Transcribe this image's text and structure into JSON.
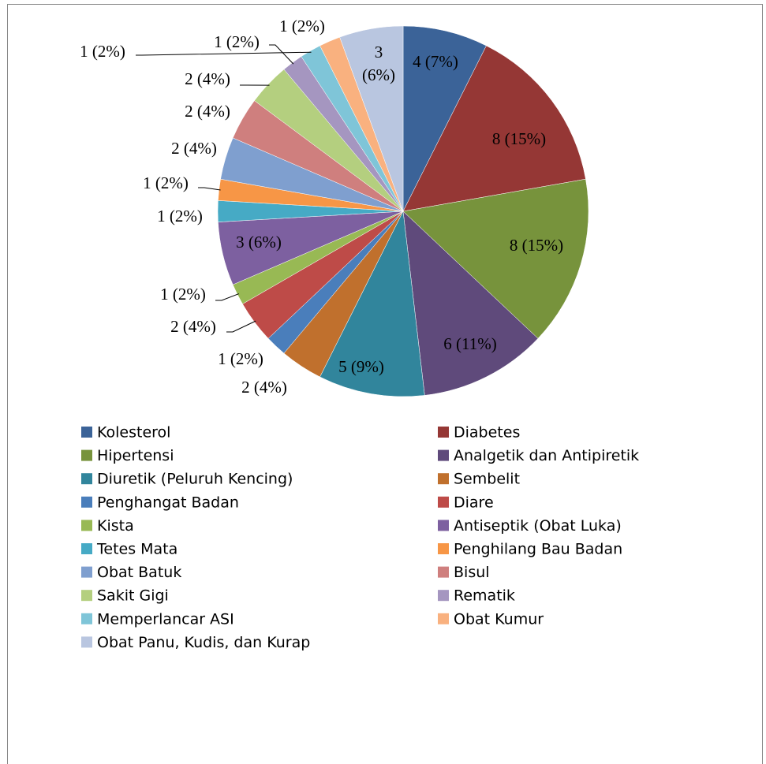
{
  "chart_data": {
    "type": "pie",
    "categories": [
      "Kolesterol",
      "Diabetes",
      "Hipertensi",
      "Analgetik dan Antipiretik",
      "Diuretik (Peluruh Kencing)",
      "Sembelit",
      "Penghangat Badan",
      "Diare",
      "Kista",
      "Antiseptik (Obat Luka)",
      "Tetes Mata",
      "Penghilang Bau Badan",
      "Obat Batuk",
      "Bisul",
      "Sakit Gigi",
      "Rematik",
      "Memperlancar ASI",
      "Obat Kumur",
      "Obat Panu, Kudis, dan Kurap"
    ],
    "values": [
      4,
      8,
      8,
      6,
      5,
      2,
      1,
      2,
      1,
      3,
      1,
      1,
      2,
      2,
      2,
      1,
      1,
      1,
      3
    ],
    "value_labels": [
      "4 (7%)",
      "8 (15%)",
      "8 (15%)",
      "6 (11%)",
      "5 (9%)",
      "2 (4%)",
      "1 (2%)",
      "2 (4%)",
      "1 (2%)",
      "3 (6%)",
      "1 (2%)",
      "1 (2%)",
      "2 (4%)",
      "2 (4%)",
      "2 (4%)",
      "1 (2%)",
      "1 (2%)",
      "1 (2%)",
      "3 (6%)"
    ],
    "colors": [
      "#3B6398",
      "#953735",
      "#77933C",
      "#5F4A7B",
      "#31859C",
      "#C0702D",
      "#4A7EBB",
      "#BE4B48",
      "#98B954",
      "#7D60A0",
      "#46AAC5",
      "#F79646",
      "#7F9FCF",
      "#CF7F7E",
      "#B4CF7F",
      "#A596C0",
      "#7FC5D8",
      "#F9B17F",
      "#B9C6E0"
    ],
    "legend": "bottom"
  }
}
